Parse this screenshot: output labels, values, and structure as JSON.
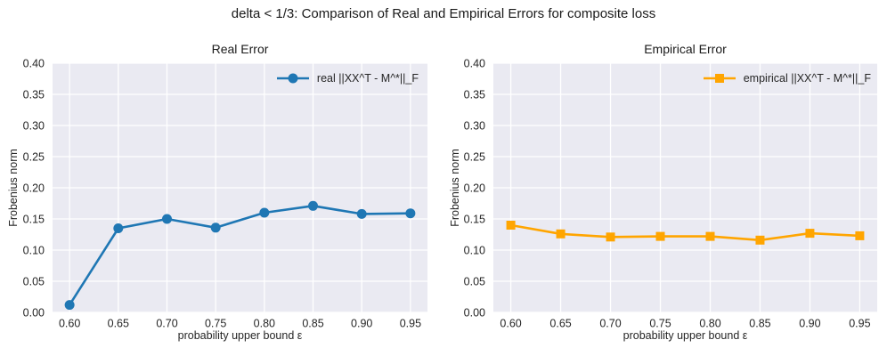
{
  "figure": {
    "title": "delta < 1/3: Comparison of Real and Empirical Errors for composite loss"
  },
  "colors": {
    "figure_background": "#FFFFFF",
    "plot_background": "#EAEAF2",
    "gridline": "#FFFFFF",
    "text": "#262626",
    "real_series": "#1F77B4",
    "empirical_series": "#FFA500"
  },
  "chart_data": [
    {
      "type": "line",
      "title": "Real Error",
      "xlabel": "probability upper bound ε",
      "ylabel": "Frobenius norm",
      "x": [
        0.6,
        0.65,
        0.7,
        0.75,
        0.8,
        0.85,
        0.9,
        0.95
      ],
      "series": [
        {
          "name": "real ||XX^T - M^*||_F",
          "values": [
            0.012,
            0.135,
            0.15,
            0.136,
            0.16,
            0.171,
            0.158,
            0.159
          ],
          "color": "#1F77B4",
          "marker": "circle"
        }
      ],
      "xlim": [
        0.5825,
        0.9675
      ],
      "ylim": [
        0.0,
        0.4
      ],
      "xticks": [
        0.6,
        0.65,
        0.7,
        0.75,
        0.8,
        0.85,
        0.9,
        0.95
      ],
      "yticks": [
        0.0,
        0.05,
        0.1,
        0.15,
        0.2,
        0.25,
        0.3,
        0.35,
        0.4
      ],
      "xtick_labels": [
        "0.60",
        "0.65",
        "0.70",
        "0.75",
        "0.80",
        "0.85",
        "0.90",
        "0.95"
      ],
      "ytick_labels": [
        "0.00",
        "0.05",
        "0.10",
        "0.15",
        "0.20",
        "0.25",
        "0.30",
        "0.35",
        "0.40"
      ],
      "grid": true,
      "legend_position": "upper right"
    },
    {
      "type": "line",
      "title": "Empirical Error",
      "xlabel": "probability upper bound ε",
      "ylabel": "Frobenius norm",
      "x": [
        0.6,
        0.65,
        0.7,
        0.75,
        0.8,
        0.85,
        0.9,
        0.95
      ],
      "series": [
        {
          "name": "empirical ||XX^T - M^*||_F",
          "values": [
            0.14,
            0.126,
            0.121,
            0.122,
            0.122,
            0.116,
            0.127,
            0.123
          ],
          "color": "#FFA500",
          "marker": "square"
        }
      ],
      "xlim": [
        0.5825,
        0.9675
      ],
      "ylim": [
        0.0,
        0.4
      ],
      "xticks": [
        0.6,
        0.65,
        0.7,
        0.75,
        0.8,
        0.85,
        0.9,
        0.95
      ],
      "yticks": [
        0.0,
        0.05,
        0.1,
        0.15,
        0.2,
        0.25,
        0.3,
        0.35,
        0.4
      ],
      "xtick_labels": [
        "0.60",
        "0.65",
        "0.70",
        "0.75",
        "0.80",
        "0.85",
        "0.90",
        "0.95"
      ],
      "ytick_labels": [
        "0.00",
        "0.05",
        "0.10",
        "0.15",
        "0.20",
        "0.25",
        "0.30",
        "0.35",
        "0.40"
      ],
      "grid": true,
      "legend_position": "upper right"
    }
  ]
}
